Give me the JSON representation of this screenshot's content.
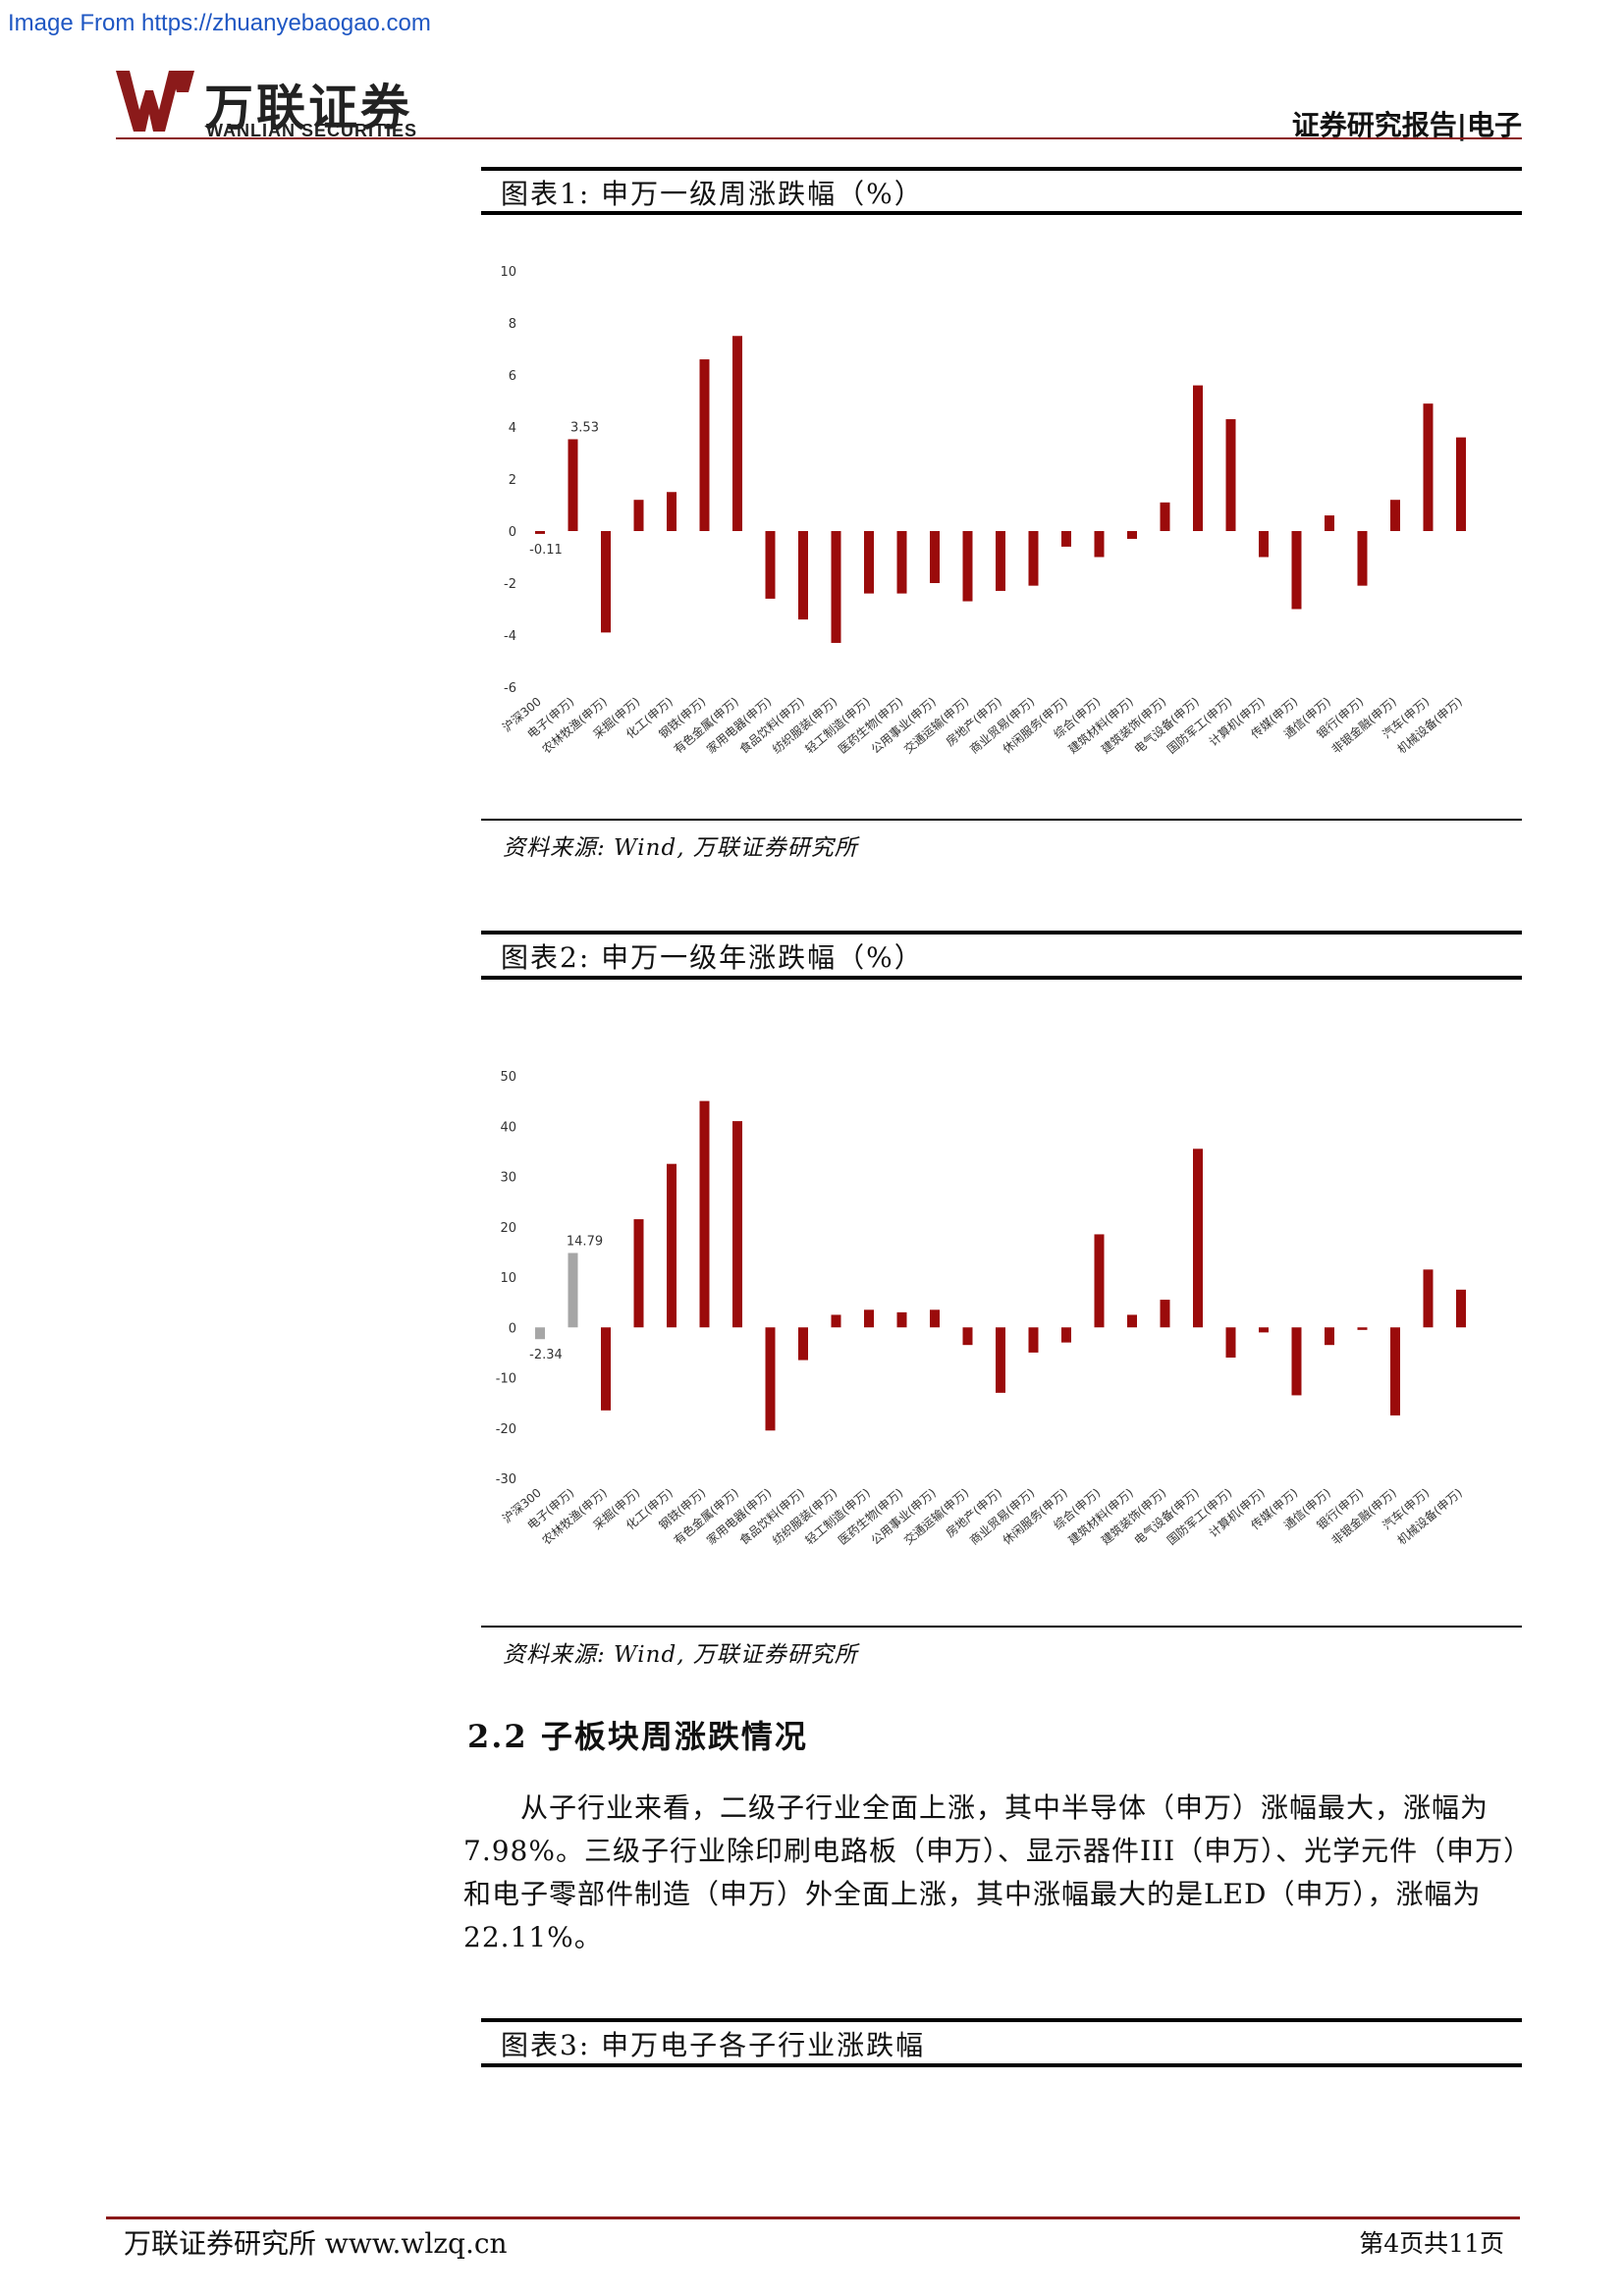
{
  "watermark": "Image From https://zhuanyebaogao.com",
  "header": {
    "logo_cn": "万联证券",
    "logo_en": "WANLIAN SECURITIES",
    "report_type": "证券研究报告|电子"
  },
  "figure1": {
    "title": "图表1:  申万一级周涨跌幅（%）",
    "source": "资料来源: Wind, 万联证券研究所"
  },
  "figure2": {
    "title": "图表2:  申万一级年涨跌幅（%）",
    "source": "资料来源: Wind, 万联证券研究所"
  },
  "section": {
    "heading": "2.2  子板块周涨跌情况",
    "paragraph_lines": [
      "从子行业来看，二级子行业全面上涨，其中半导体（申万）涨幅最大，涨幅为",
      "7.98%。三级子行业除印刷电路板（申万）、显示器件III（申万）、光学元件（申万）",
      "和电子零部件制造（申万）外全面上涨，其中涨幅最大的是LED（申万），涨幅为",
      "22.11%。"
    ]
  },
  "figure3": {
    "title": "图表3:  申万电子各子行业涨跌幅"
  },
  "footer": {
    "left": "万联证券研究所 www.wlzq.cn",
    "right": "第4页共11页"
  },
  "colors": {
    "bar": "#9b0b0b",
    "highlight_bar": "#a6a6a6",
    "brand": "#8b1a1a"
  },
  "chart_data": [
    {
      "type": "bar",
      "title": "申万一级周涨跌幅（%）",
      "categories": [
        "沪深300",
        "电子(申万)",
        "农林牧渔(申万)",
        "采掘(申万)",
        "化工(申万)",
        "钢铁(申万)",
        "有色金属(申万)",
        "家用电器(申万)",
        "食品饮料(申万)",
        "纺织服装(申万)",
        "轻工制造(申万)",
        "医药生物(申万)",
        "公用事业(申万)",
        "交通运输(申万)",
        "房地产(申万)",
        "商业贸易(申万)",
        "休闲服务(申万)",
        "综合(申万)",
        "建筑材料(申万)",
        "建筑装饰(申万)",
        "电气设备(申万)",
        "国防军工(申万)",
        "计算机(申万)",
        "传媒(申万)",
        "通信(申万)",
        "银行(申万)",
        "非银金融(申万)",
        "汽车(申万)",
        "机械设备(申万)"
      ],
      "values": [
        -0.11,
        3.53,
        -3.9,
        1.2,
        1.5,
        6.6,
        7.5,
        -2.6,
        -3.4,
        -4.3,
        -2.4,
        -2.4,
        -2.0,
        -2.7,
        -2.3,
        -2.1,
        -0.6,
        -1.0,
        -0.3,
        1.1,
        5.6,
        4.3,
        -1.0,
        -3.0,
        0.6,
        -2.1,
        1.2,
        4.9,
        3.6
      ],
      "data_labels": {
        "0": "-0.11",
        "1": "3.53"
      },
      "ylim": [
        -6,
        10
      ],
      "yticks": [
        10,
        8,
        6,
        4,
        2,
        0,
        -2,
        -4,
        -6
      ],
      "grid": false
    },
    {
      "type": "bar",
      "title": "申万一级年涨跌幅（%）",
      "categories": [
        "沪深300",
        "电子(申万)",
        "农林牧渔(申万)",
        "采掘(申万)",
        "化工(申万)",
        "钢铁(申万)",
        "有色金属(申万)",
        "家用电器(申万)",
        "食品饮料(申万)",
        "纺织服装(申万)",
        "轻工制造(申万)",
        "医药生物(申万)",
        "公用事业(申万)",
        "交通运输(申万)",
        "房地产(申万)",
        "商业贸易(申万)",
        "休闲服务(申万)",
        "综合(申万)",
        "建筑材料(申万)",
        "建筑装饰(申万)",
        "电气设备(申万)",
        "国防军工(申万)",
        "计算机(申万)",
        "传媒(申万)",
        "通信(申万)",
        "银行(申万)",
        "非银金融(申万)",
        "汽车(申万)",
        "机械设备(申万)"
      ],
      "values": [
        -2.34,
        14.79,
        -16.5,
        21.5,
        32.5,
        45,
        41,
        -20.5,
        -6.5,
        2.5,
        3.5,
        3,
        3.5,
        -3.5,
        -13,
        -5,
        -3,
        18.5,
        2.5,
        5.5,
        35.5,
        -6,
        -1,
        -13.5,
        -3.5,
        -0.5,
        -17.5,
        11.5,
        7.5
      ],
      "data_labels": {
        "0": "-2.34",
        "1": "14.79"
      },
      "highlight_indices": [
        0,
        1
      ],
      "ylim": [
        -30,
        50
      ],
      "yticks": [
        50,
        40,
        30,
        20,
        10,
        0,
        -10,
        -20,
        -30
      ],
      "grid": false
    }
  ]
}
